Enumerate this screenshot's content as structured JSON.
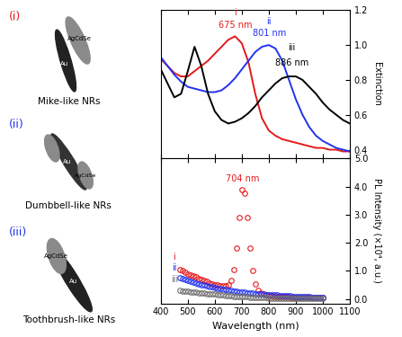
{
  "chart_data": [
    {
      "type": "line",
      "y_label": "Extinction",
      "tick_labels": "y",
      "x": [
        400,
        425,
        450,
        475,
        500,
        525,
        550,
        575,
        600,
        625,
        650,
        675,
        700,
        725,
        750,
        775,
        800,
        825,
        850,
        875,
        900,
        925,
        950,
        975,
        1000,
        1025,
        1050,
        1075,
        1100
      ],
      "series": [
        {
          "color": "#e41a1c",
          "line_style": "solid",
          "values": [
            0.92,
            0.88,
            0.84,
            0.82,
            0.82,
            0.85,
            0.88,
            0.91,
            0.95,
            0.99,
            1.03,
            1.05,
            1.01,
            0.9,
            0.72,
            0.58,
            0.51,
            0.48,
            0.46,
            0.45,
            0.44,
            0.43,
            0.42,
            0.41,
            0.41,
            0.4,
            0.4,
            0.39,
            0.39
          ]
        },
        {
          "color": "#2233ee",
          "line_style": "solid",
          "values": [
            0.93,
            0.88,
            0.83,
            0.79,
            0.76,
            0.75,
            0.74,
            0.73,
            0.73,
            0.74,
            0.77,
            0.81,
            0.86,
            0.91,
            0.96,
            0.99,
            1.0,
            0.98,
            0.91,
            0.8,
            0.69,
            0.6,
            0.53,
            0.48,
            0.45,
            0.43,
            0.41,
            0.4,
            0.39
          ]
        },
        {
          "color": "#000000",
          "line_style": "solid",
          "values": [
            0.86,
            0.78,
            0.7,
            0.72,
            0.85,
            0.99,
            0.88,
            0.72,
            0.62,
            0.57,
            0.55,
            0.56,
            0.58,
            0.61,
            0.65,
            0.7,
            0.74,
            0.78,
            0.81,
            0.82,
            0.82,
            0.8,
            0.76,
            0.72,
            0.67,
            0.63,
            0.6,
            0.57,
            0.55
          ]
        }
      ],
      "xlim": [
        400,
        1100
      ],
      "xticks": [
        400,
        500,
        600,
        700,
        800,
        900,
        1000,
        1100
      ],
      "ylim": [
        0.35,
        1.2
      ],
      "yticks": [
        0.4,
        0.6,
        0.8,
        {
          "value": 1.0,
          "label": "1.0"
        },
        1.2
      ],
      "annotations": [
        {
          "text": "i",
          "x": 675,
          "y": 1.16,
          "color": "#e41a1c"
        },
        {
          "text": "675 nm",
          "x": 675,
          "y": 1.09,
          "color": "#e41a1c"
        },
        {
          "text": "ii",
          "x": 801,
          "y": 1.11,
          "color": "#2233ee"
        },
        {
          "text": "801 nm",
          "x": 801,
          "y": 1.04,
          "color": "#2233ee"
        },
        {
          "text": "iii",
          "x": 886,
          "y": 0.96,
          "color": "#000000"
        },
        {
          "text": "886 nm",
          "x": 886,
          "y": 0.87,
          "color": "#000000"
        }
      ]
    },
    {
      "type": "line",
      "y_label": "PL Intensity (×10⁴, a.u.)",
      "x_label": "Wavelength (nm)",
      "x": [
        470,
        480,
        490,
        500,
        510,
        520,
        530,
        540,
        550,
        560,
        570,
        580,
        590,
        600,
        610,
        620,
        630,
        640,
        650,
        660,
        670,
        680,
        690,
        700,
        710,
        720,
        730,
        740,
        750,
        760,
        770,
        780,
        790,
        800,
        810,
        820,
        830,
        840,
        850,
        860,
        870,
        880,
        890,
        900,
        910,
        920,
        930,
        940,
        950,
        960,
        970,
        980,
        990,
        1000
      ],
      "series": [
        {
          "color": "#e41a1c",
          "marker": "o",
          "line_style": "none",
          "values": [
            1.05,
            1.0,
            0.95,
            0.9,
            0.86,
            0.82,
            0.78,
            0.74,
            0.7,
            0.66,
            0.62,
            0.58,
            0.55,
            0.52,
            0.49,
            0.47,
            0.46,
            0.47,
            0.52,
            0.68,
            1.05,
            1.8,
            2.9,
            3.9,
            3.75,
            2.9,
            1.8,
            1.0,
            0.55,
            0.32,
            0.22,
            0.17,
            0.14,
            0.12,
            0.11,
            0.1,
            0.09,
            0.09,
            0.08,
            0.08,
            0.08,
            0.07,
            0.07,
            0.07,
            0.06,
            0.06,
            0.06,
            0.06,
            0.05,
            0.05,
            0.05,
            0.05,
            0.05,
            0.05
          ]
        },
        {
          "color": "#2233ee",
          "marker": "o",
          "line_style": "none",
          "values": [
            0.75,
            0.72,
            0.69,
            0.66,
            0.63,
            0.6,
            0.57,
            0.54,
            0.52,
            0.49,
            0.47,
            0.45,
            0.43,
            0.41,
            0.39,
            0.37,
            0.35,
            0.33,
            0.32,
            0.3,
            0.29,
            0.27,
            0.26,
            0.25,
            0.24,
            0.23,
            0.22,
            0.21,
            0.2,
            0.19,
            0.18,
            0.17,
            0.16,
            0.16,
            0.15,
            0.14,
            0.14,
            0.13,
            0.12,
            0.12,
            0.11,
            0.11,
            0.1,
            0.1,
            0.09,
            0.09,
            0.08,
            0.08,
            0.08,
            0.07,
            0.07,
            0.07,
            0.06,
            0.06
          ]
        },
        {
          "color": "#707070",
          "marker": "o",
          "line_style": "none",
          "values": [
            0.3,
            0.29,
            0.28,
            0.27,
            0.26,
            0.25,
            0.24,
            0.23,
            0.22,
            0.21,
            0.2,
            0.19,
            0.18,
            0.17,
            0.16,
            0.15,
            0.14,
            0.13,
            0.12,
            0.11,
            0.1,
            0.1,
            0.09,
            0.09,
            0.08,
            0.08,
            0.07,
            0.07,
            0.06,
            0.06,
            0.05,
            0.05,
            0.05,
            0.04,
            0.04,
            0.04,
            0.04,
            0.03,
            0.03,
            0.03,
            0.03,
            0.03,
            0.02,
            0.02,
            0.02,
            0.02,
            0.02,
            0.02,
            0.01,
            0.01,
            0.01,
            0.01,
            0.01,
            0.01
          ]
        }
      ],
      "xlim": [
        400,
        1100
      ],
      "xticks": [
        400,
        500,
        600,
        700,
        800,
        900,
        1000,
        1100
      ],
      "ylim": [
        -0.15,
        5.0
      ],
      "yticks": [
        {
          "value": 0.0,
          "label": "0.0"
        },
        {
          "value": 1.0,
          "label": "1.0"
        },
        {
          "value": 2.0,
          "label": "2.0"
        },
        {
          "value": 3.0,
          "label": "3.0"
        },
        {
          "value": 4.0,
          "label": "4.0"
        },
        {
          "value": 5.0,
          "label": "5.0"
        }
      ],
      "annotations": [
        {
          "text": "704 nm",
          "x": 704,
          "y": 4.1,
          "color": "#e41a1c"
        },
        {
          "text": "i",
          "x": 450,
          "y": 1.35,
          "color": "#e41a1c"
        },
        {
          "text": "ii",
          "x": 450,
          "y": 0.95,
          "color": "#2233ee"
        },
        {
          "text": "iii",
          "x": 450,
          "y": 0.55,
          "color": "#707070"
        }
      ]
    }
  ],
  "schematic": {
    "items": [
      {
        "label": "(i)",
        "name": "Mike-like NRs",
        "shell": "AgCdSe",
        "core": "Au",
        "color": "#e41a1c"
      },
      {
        "label": "(ii)",
        "name": "Dumbbell-like NRs",
        "shell": "AgCdSe",
        "core": "Au",
        "color": "#2233ee"
      },
      {
        "label": "(iii)",
        "name": "Toothbrush-like NRs",
        "shell": "AgCdSe",
        "core": "Au",
        "color": "#2233ee"
      }
    ]
  }
}
